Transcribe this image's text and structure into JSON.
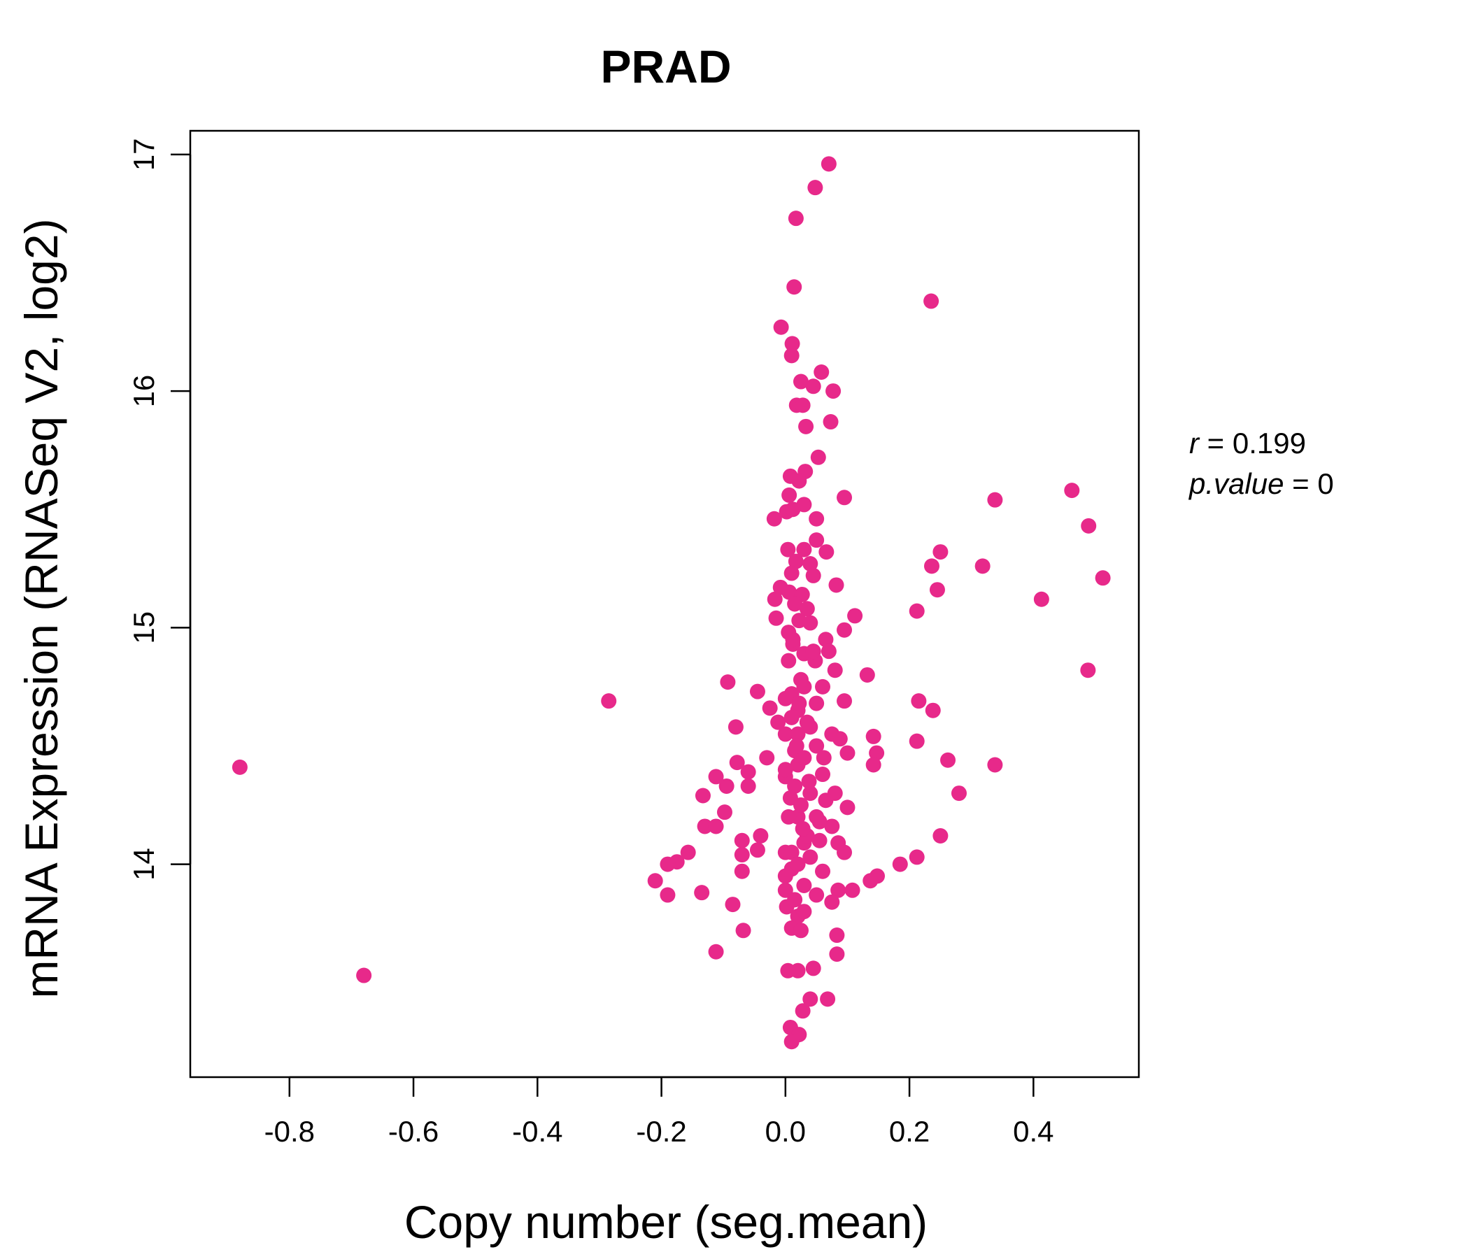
{
  "chart_data": {
    "type": "scatter",
    "title": "PRAD",
    "xlabel": "Copy number (seg.mean)",
    "ylabel": "mRNA Expression (RNASeq V2, log2)",
    "xlim": [
      -0.96,
      0.57
    ],
    "ylim": [
      13.1,
      17.1
    ],
    "x_ticks": [
      -0.8,
      -0.6,
      -0.4,
      -0.2,
      0.0,
      0.2,
      0.4
    ],
    "x_tick_labels": [
      "-0.8",
      "-0.6",
      "-0.4",
      "-0.2",
      "0.0",
      "0.2",
      "0.4"
    ],
    "y_ticks": [
      14,
      15,
      16,
      17
    ],
    "y_tick_labels": [
      "14",
      "15",
      "16",
      "17"
    ],
    "grid": false,
    "annotation": {
      "r_label": "r",
      "r_value": "0.199",
      "p_label": "p.value",
      "p_value": "0"
    },
    "series": [
      {
        "color": "#E7298A",
        "points": [
          [
            0.07,
            16.96
          ],
          [
            0.048,
            16.86
          ],
          [
            0.017,
            16.73
          ],
          [
            0.014,
            16.44
          ],
          [
            0.235,
            16.38
          ],
          [
            -0.007,
            16.27
          ],
          [
            0.011,
            16.2
          ],
          [
            0.01,
            16.15
          ],
          [
            0.058,
            16.08
          ],
          [
            0.025,
            16.04
          ],
          [
            0.045,
            16.02
          ],
          [
            0.077,
            16.0
          ],
          [
            0.018,
            15.94
          ],
          [
            0.028,
            15.94
          ],
          [
            0.033,
            15.85
          ],
          [
            0.073,
            15.87
          ],
          [
            0.053,
            15.72
          ],
          [
            0.032,
            15.66
          ],
          [
            0.008,
            15.64
          ],
          [
            0.022,
            15.62
          ],
          [
            0.095,
            15.55
          ],
          [
            0.006,
            15.56
          ],
          [
            0.03,
            15.52
          ],
          [
            0.002,
            15.49
          ],
          [
            0.012,
            15.5
          ],
          [
            -0.018,
            15.46
          ],
          [
            0.05,
            15.46
          ],
          [
            0.338,
            15.54
          ],
          [
            0.462,
            15.58
          ],
          [
            0.489,
            15.43
          ],
          [
            0.05,
            15.37
          ],
          [
            0.066,
            15.32
          ],
          [
            0.004,
            15.33
          ],
          [
            0.03,
            15.33
          ],
          [
            0.25,
            15.32
          ],
          [
            0.017,
            15.28
          ],
          [
            0.04,
            15.27
          ],
          [
            0.236,
            15.26
          ],
          [
            0.318,
            15.26
          ],
          [
            0.01,
            15.23
          ],
          [
            0.045,
            15.22
          ],
          [
            0.512,
            15.21
          ],
          [
            0.082,
            15.18
          ],
          [
            -0.008,
            15.17
          ],
          [
            0.006,
            15.15
          ],
          [
            0.245,
            15.16
          ],
          [
            0.027,
            15.14
          ],
          [
            -0.017,
            15.12
          ],
          [
            0.413,
            15.12
          ],
          [
            0.015,
            15.1
          ],
          [
            0.035,
            15.08
          ],
          [
            0.212,
            15.07
          ],
          [
            0.112,
            15.05
          ],
          [
            -0.015,
            15.04
          ],
          [
            0.022,
            15.03
          ],
          [
            0.04,
            15.02
          ],
          [
            0.095,
            14.99
          ],
          [
            0.005,
            14.98
          ],
          [
            0.065,
            14.95
          ],
          [
            0.012,
            14.93
          ],
          [
            0.07,
            14.9
          ],
          [
            0.03,
            14.89
          ],
          [
            0.005,
            14.86
          ],
          [
            0.048,
            14.86
          ],
          [
            0.488,
            14.82
          ],
          [
            0.08,
            14.82
          ],
          [
            0.132,
            14.8
          ],
          [
            0.025,
            14.78
          ],
          [
            -0.093,
            14.77
          ],
          [
            0.06,
            14.75
          ],
          [
            -0.045,
            14.73
          ],
          [
            0.01,
            14.72
          ],
          [
            -0.285,
            14.69
          ],
          [
            0.215,
            14.69
          ],
          [
            0.095,
            14.69
          ],
          [
            0.05,
            14.68
          ],
          [
            -0.025,
            14.66
          ],
          [
            0.02,
            14.65
          ],
          [
            0.238,
            14.65
          ],
          [
            -0.012,
            14.6
          ],
          [
            0.035,
            14.6
          ],
          [
            -0.08,
            14.58
          ],
          [
            0.075,
            14.55
          ],
          [
            0.0,
            14.55
          ],
          [
            0.142,
            14.54
          ],
          [
            0.088,
            14.53
          ],
          [
            0.212,
            14.52
          ],
          [
            0.05,
            14.5
          ],
          [
            0.015,
            14.48
          ],
          [
            0.1,
            14.47
          ],
          [
            0.147,
            14.47
          ],
          [
            0.262,
            14.44
          ],
          [
            -0.03,
            14.45
          ],
          [
            -0.078,
            14.43
          ],
          [
            0.142,
            14.42
          ],
          [
            0.338,
            14.42
          ],
          [
            0.02,
            14.42
          ],
          [
            -0.06,
            14.39
          ],
          [
            -0.112,
            14.37
          ],
          [
            0.0,
            14.37
          ],
          [
            0.06,
            14.38
          ],
          [
            -0.095,
            14.33
          ],
          [
            -0.06,
            14.33
          ],
          [
            -0.88,
            14.41
          ],
          [
            0.08,
            14.3
          ],
          [
            0.28,
            14.3
          ],
          [
            0.04,
            14.3
          ],
          [
            -0.133,
            14.29
          ],
          [
            0.065,
            14.27
          ],
          [
            0.1,
            14.24
          ],
          [
            -0.098,
            14.22
          ],
          [
            0.02,
            14.2
          ],
          [
            0.055,
            14.18
          ],
          [
            -0.13,
            14.16
          ],
          [
            -0.112,
            14.16
          ],
          [
            0.075,
            14.16
          ],
          [
            -0.04,
            14.12
          ],
          [
            0.25,
            14.12
          ],
          [
            -0.07,
            14.1
          ],
          [
            0.03,
            14.09
          ],
          [
            0.085,
            14.09
          ],
          [
            -0.045,
            14.06
          ],
          [
            0.0,
            14.05
          ],
          [
            -0.157,
            14.05
          ],
          [
            0.095,
            14.05
          ],
          [
            -0.07,
            14.04
          ],
          [
            0.04,
            14.03
          ],
          [
            0.212,
            14.03
          ],
          [
            -0.175,
            14.01
          ],
          [
            0.185,
            14.0
          ],
          [
            -0.19,
            14.0
          ],
          [
            0.01,
            13.98
          ],
          [
            0.06,
            13.97
          ],
          [
            -0.07,
            13.97
          ],
          [
            0.148,
            13.95
          ],
          [
            -0.21,
            13.93
          ],
          [
            0.137,
            13.93
          ],
          [
            0.03,
            13.91
          ],
          [
            -0.135,
            13.88
          ],
          [
            0.085,
            13.89
          ],
          [
            0.108,
            13.89
          ],
          [
            -0.19,
            13.87
          ],
          [
            0.0,
            13.89
          ],
          [
            0.05,
            13.87
          ],
          [
            -0.085,
            13.83
          ],
          [
            0.075,
            13.84
          ],
          [
            0.002,
            13.82
          ],
          [
            0.02,
            13.78
          ],
          [
            0.01,
            13.73
          ],
          [
            0.025,
            13.72
          ],
          [
            -0.068,
            13.72
          ],
          [
            0.083,
            13.7
          ],
          [
            -0.112,
            13.63
          ],
          [
            0.083,
            13.62
          ],
          [
            0.045,
            13.56
          ],
          [
            0.02,
            13.55
          ],
          [
            0.004,
            13.55
          ],
          [
            0.04,
            13.43
          ],
          [
            0.068,
            13.43
          ],
          [
            -0.68,
            13.53
          ],
          [
            0.028,
            13.38
          ],
          [
            0.008,
            13.31
          ],
          [
            0.022,
            13.28
          ],
          [
            0.01,
            13.25
          ],
          [
            0.0,
            14.7
          ],
          [
            0.01,
            14.62
          ],
          [
            0.02,
            14.55
          ],
          [
            0.03,
            14.45
          ],
          [
            0.0,
            14.4
          ],
          [
            0.015,
            14.33
          ],
          [
            0.025,
            14.25
          ],
          [
            0.005,
            14.2
          ],
          [
            0.035,
            14.12
          ],
          [
            0.01,
            14.05
          ],
          [
            0.02,
            14.0
          ],
          [
            0.04,
            14.58
          ],
          [
            0.03,
            14.75
          ],
          [
            0.045,
            14.9
          ],
          [
            0.012,
            14.95
          ],
          [
            0.028,
            14.15
          ],
          [
            0.018,
            14.5
          ],
          [
            0.008,
            14.28
          ],
          [
            0.038,
            14.35
          ],
          [
            0.022,
            14.68
          ],
          [
            0.05,
            14.2
          ],
          [
            0.0,
            13.95
          ],
          [
            0.015,
            13.85
          ],
          [
            0.03,
            13.8
          ],
          [
            0.055,
            14.1
          ],
          [
            0.062,
            14.45
          ]
        ]
      }
    ]
  }
}
